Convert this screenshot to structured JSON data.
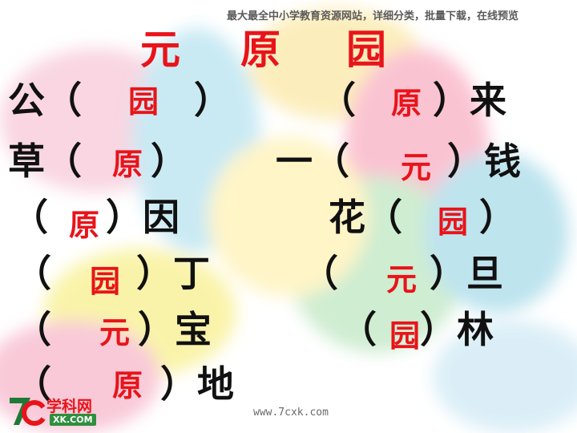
{
  "banner": "最大最全中小学教育资源网站，详细分类，批量下载，在线预览",
  "header_chars": [
    "元",
    "原",
    "园"
  ],
  "rows": [
    {
      "left": {
        "pre": "公（",
        "ans": "园",
        "post": "）"
      },
      "right": {
        "pre": "（",
        "ans": "原",
        "post": "）来"
      }
    },
    {
      "left": {
        "pre": "草（",
        "ans": "原",
        "post": "）"
      },
      "right": {
        "pre": "一（",
        "ans": "元",
        "post": "）钱"
      }
    },
    {
      "left": {
        "pre": "（",
        "ans": "原",
        "post": "）因"
      },
      "right": {
        "pre": "花（",
        "ans": "园",
        "post": "）"
      }
    },
    {
      "left": {
        "pre": "（",
        "ans": "园",
        "post": "）丁"
      },
      "right": {
        "pre": "（",
        "ans": "元",
        "post": "）旦"
      }
    },
    {
      "left": {
        "pre": "（",
        "ans": "元",
        "post": "）宝"
      },
      "right": {
        "pre": "（",
        "ans": "园",
        "post": "）林"
      }
    },
    {
      "left": {
        "pre": "（",
        "ans": "原",
        "post": "）地"
      }
    }
  ],
  "logo": {
    "mark": "7c",
    "name_cn": "学科网",
    "name_en": "XK.COM"
  },
  "footer_url": "www.7cxk.com",
  "colors": {
    "answer_red": "#e8141a",
    "text_black": "#111111"
  }
}
